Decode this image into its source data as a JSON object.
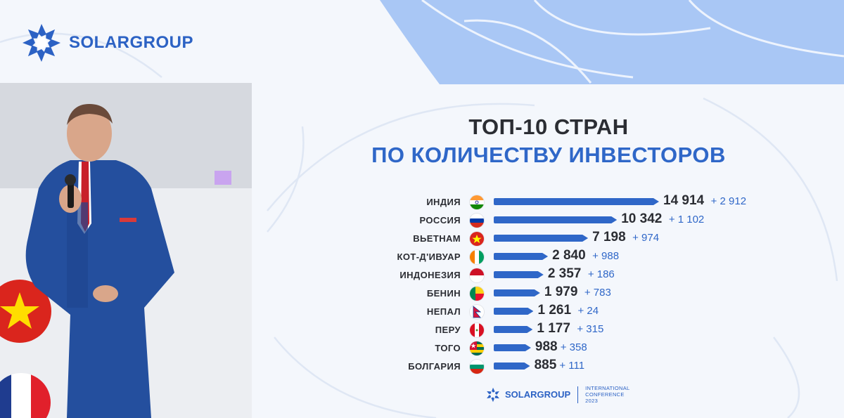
{
  "brand": {
    "name": "SOLARGROUP"
  },
  "title": {
    "line1": "ТОП-10 СТРАН",
    "line2": "ПО КОЛИЧЕСТВУ ИНВЕСТОРОВ"
  },
  "colors": {
    "accent": "#2f67c8",
    "text": "#2b2d33",
    "background": "#f4f7fc"
  },
  "footer": {
    "brand": "SOLARGROUP",
    "conf_line1": "INTERNATIONAL",
    "conf_line2": "CONFERENCE",
    "conf_line3": "2023"
  },
  "chart_data": {
    "type": "bar",
    "orientation": "horizontal",
    "title": "ТОП-10 СТРАН ПО КОЛИЧЕСТВУ ИНВЕСТОРОВ",
    "categories": [
      "ИНДИЯ",
      "РОССИЯ",
      "ВЬЕТНАМ",
      "КОТ-Д'ИВУАР",
      "ИНДОНЕЗИЯ",
      "БЕНИН",
      "НЕПАЛ",
      "ПЕРУ",
      "ТОГО",
      "БОЛГАРИЯ"
    ],
    "values": [
      14914,
      10342,
      7198,
      2840,
      2357,
      1979,
      1261,
      1177,
      988,
      885
    ],
    "value_labels": [
      "14 914",
      "10 342",
      "7 198",
      "2 840",
      "2 357",
      "1 979",
      "1 261",
      "1 177",
      "988",
      "885"
    ],
    "increase": [
      2912,
      1102,
      974,
      988,
      186,
      783,
      24,
      315,
      358,
      111
    ],
    "increase_labels": [
      "+ 2 912",
      "+ 1 102",
      "+ 974",
      "+ 988",
      "+ 186",
      "+ 783",
      "+ 24",
      "+ 315",
      "+ 358",
      "+ 111"
    ],
    "flags": [
      "india-flag-icon",
      "russia-flag-icon",
      "vietnam-flag-icon",
      "ivory-coast-flag-icon",
      "indonesia-flag-icon",
      "benin-flag-icon",
      "nepal-flag-icon",
      "peru-flag-icon",
      "togo-flag-icon",
      "bulgaria-flag-icon"
    ]
  }
}
